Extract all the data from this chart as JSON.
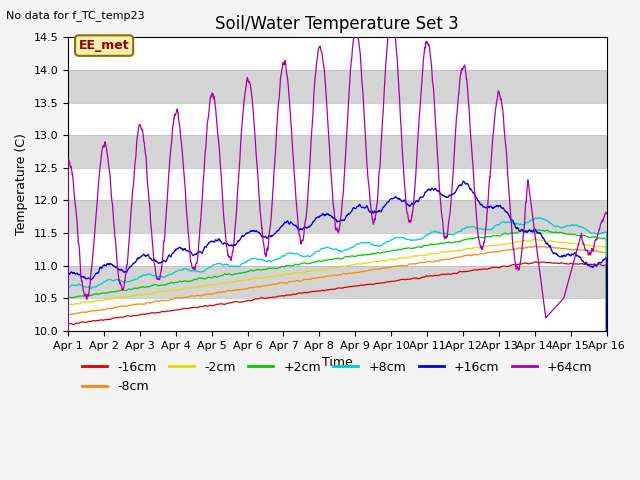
{
  "title": "Soil/Water Temperature Set 3",
  "xlabel": "Time",
  "ylabel": "Temperature (C)",
  "no_data_text": "No data for f_TC_temp23",
  "annotation_text": "EE_met",
  "ylim": [
    10.0,
    14.5
  ],
  "xlim": [
    0,
    15
  ],
  "xtick_labels": [
    "Apr 1",
    "Apr 2",
    "Apr 3",
    "Apr 4",
    "Apr 5",
    "Apr 6",
    "Apr 7",
    "Apr 8",
    "Apr 9",
    "Apr 10",
    "Apr 11",
    "Apr 12",
    "Apr 13",
    "Apr 14",
    "Apr 15",
    "Apr 16"
  ],
  "series_colors": {
    "-16cm": "#dd0000",
    "-8cm": "#ff8800",
    "-2cm": "#dddd00",
    "+2cm": "#00cc00",
    "+8cm": "#00cccc",
    "+16cm": "#0000dd",
    "+64cm": "#aa00aa"
  },
  "title_fontsize": 12,
  "label_fontsize": 9,
  "tick_fontsize": 8,
  "legend_fontsize": 9
}
